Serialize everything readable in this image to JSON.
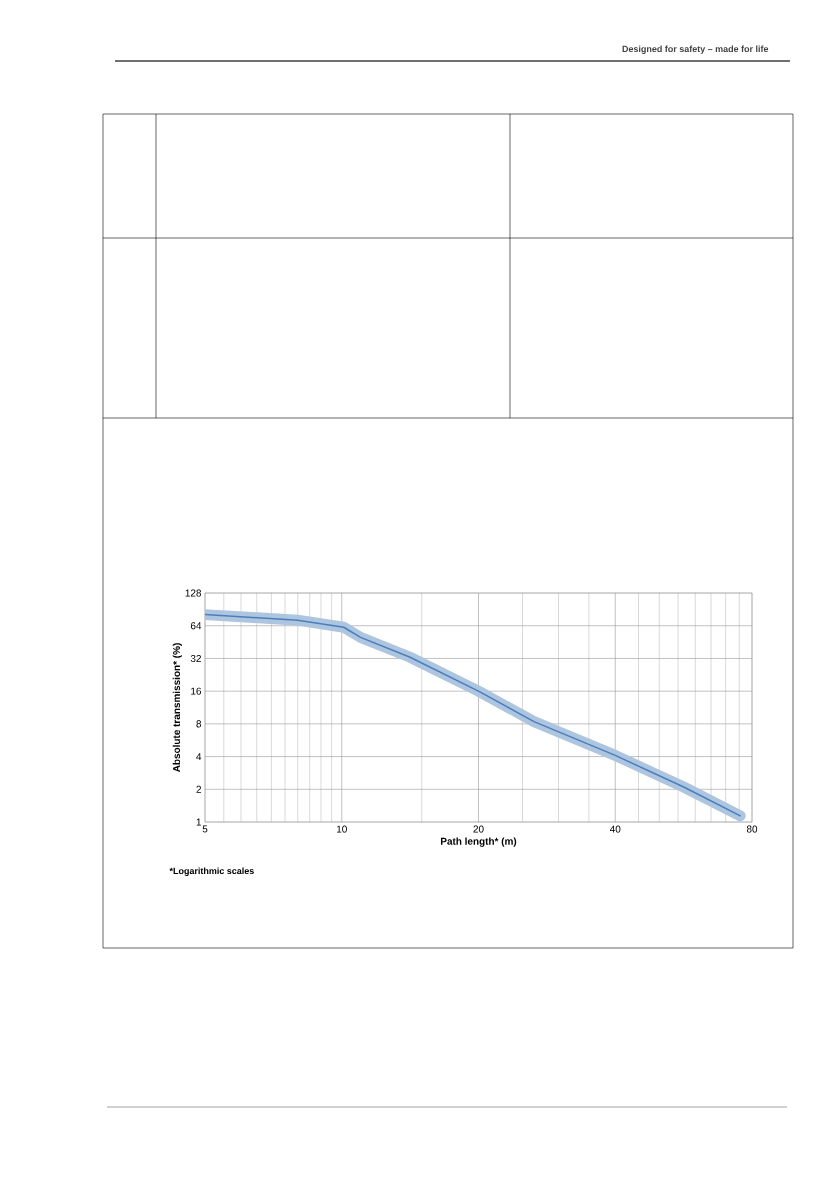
{
  "chart_data": {
    "type": "line",
    "xlabel": "Path length* (m)",
    "ylabel": "Absolute transmission* (%)",
    "log": "xy",
    "x": [
      5,
      8.0,
      10.1,
      11.0,
      14.1,
      20,
      26.5,
      40,
      56.6,
      75.4
    ],
    "series": [
      {
        "color": "#4a7ebb",
        "values": [
          81,
          72,
          62,
          50,
          33,
          16,
          8.4,
          4.1,
          2.1,
          1.14
        ]
      }
    ],
    "xlim": [
      5,
      80
    ],
    "xticks": [
      5,
      10,
      20,
      40,
      80
    ],
    "ylim": [
      1,
      128
    ],
    "yticks": [
      1,
      2,
      4,
      8,
      16,
      32,
      64,
      128
    ],
    "grid": true,
    "annotations": [
      "Designed for safety – made for life",
      "*Logarithmic scales"
    ]
  }
}
